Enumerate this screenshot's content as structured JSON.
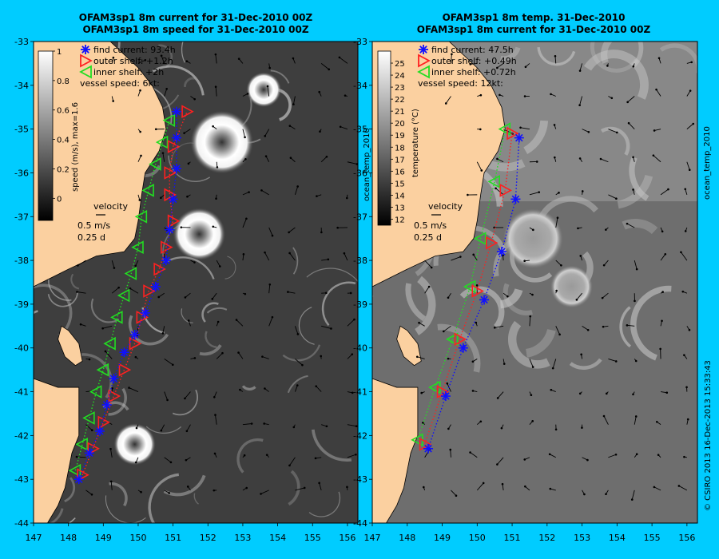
{
  "background_color": "#00ccff",
  "land_color": "#fbd0a0",
  "marker_colors": {
    "find": "#1010ff",
    "outer": "#ff2020",
    "inner": "#22dd22"
  },
  "panels": [
    {
      "id": "left",
      "title_line1": "OFAM3sp1 8m current for 31-Dec-2010 00Z",
      "title_line2": "OFAM3sp1 8m speed for 31-Dec-2010 00Z",
      "colorbar": {
        "label": "speed (m/s), max=1.6",
        "tick_labels": [
          "1",
          "0.8",
          "0.6",
          "0.4",
          "0.2",
          "0"
        ],
        "range": [
          -0.15,
          1.0
        ],
        "colormap": "grayscale"
      },
      "legend": [
        {
          "symbol": "asterisk",
          "color": "find",
          "text": "find current: 93.4h"
        },
        {
          "symbol": "triangle-right",
          "color": "outer",
          "text": "outer shelf: +1.2h"
        },
        {
          "symbol": "triangle-left",
          "color": "inner",
          "text": "inner shelf: +2h"
        },
        {
          "symbol": "none",
          "color": "",
          "text": "vessel speed: 6kt:"
        }
      ],
      "velocity_key": {
        "title": "velocity",
        "speed": "0.5 m/s",
        "time": "0.25 d"
      },
      "side_label": "",
      "eddies": [
        {
          "lon": 152.4,
          "lat": -35.3,
          "radius_deg": 0.9
        },
        {
          "lon": 151.75,
          "lat": -37.4,
          "radius_deg": 0.75
        },
        {
          "lon": 153.6,
          "lat": -34.1,
          "radius_deg": 0.5
        },
        {
          "lon": 149.9,
          "lat": -42.2,
          "radius_deg": 0.6
        }
      ],
      "tracks": {
        "find": [
          [
            148.3,
            -43.0
          ],
          [
            148.6,
            -42.4
          ],
          [
            148.9,
            -41.9
          ],
          [
            149.1,
            -41.3
          ],
          [
            149.3,
            -40.7
          ],
          [
            149.6,
            -40.1
          ],
          [
            149.9,
            -39.7
          ],
          [
            150.2,
            -39.2
          ],
          [
            150.5,
            -38.6
          ],
          [
            150.8,
            -38.0
          ],
          [
            150.9,
            -37.3
          ],
          [
            151.0,
            -36.6
          ],
          [
            151.1,
            -35.9
          ],
          [
            151.1,
            -35.2
          ],
          [
            151.1,
            -34.6
          ]
        ],
        "outer": [
          [
            148.4,
            -42.9
          ],
          [
            148.7,
            -42.3
          ],
          [
            149.0,
            -41.7
          ],
          [
            149.3,
            -41.1
          ],
          [
            149.6,
            -40.5
          ],
          [
            149.9,
            -39.9
          ],
          [
            150.1,
            -39.3
          ],
          [
            150.3,
            -38.7
          ],
          [
            150.6,
            -38.2
          ],
          [
            150.8,
            -37.7
          ],
          [
            151.0,
            -37.1
          ],
          [
            150.9,
            -36.5
          ],
          [
            150.9,
            -36.0
          ],
          [
            151.0,
            -35.4
          ],
          [
            151.4,
            -34.6
          ]
        ],
        "inner": [
          [
            148.2,
            -42.8
          ],
          [
            148.4,
            -42.2
          ],
          [
            148.6,
            -41.6
          ],
          [
            148.8,
            -41.0
          ],
          [
            149.0,
            -40.5
          ],
          [
            149.2,
            -39.9
          ],
          [
            149.4,
            -39.3
          ],
          [
            149.6,
            -38.8
          ],
          [
            149.8,
            -38.3
          ],
          [
            150.0,
            -37.7
          ],
          [
            150.1,
            -37.0
          ],
          [
            150.3,
            -36.4
          ],
          [
            150.5,
            -35.8
          ],
          [
            150.7,
            -35.3
          ],
          [
            150.9,
            -34.8
          ]
        ]
      }
    },
    {
      "id": "right",
      "title_line1": "OFAM3sp1 8m temp. 31-Dec-2010",
      "title_line2": "OFAM3sp1 8m current for 31-Dec-2010 00Z",
      "colorbar": {
        "label": "temperature (°C)",
        "left_label": "ocean_temp_2010",
        "tick_labels": [
          "25",
          "24",
          "23",
          "22",
          "21",
          "20",
          "19",
          "18",
          "17",
          "16",
          "15",
          "14",
          "13",
          "12"
        ],
        "range": [
          11.5,
          26.0
        ],
        "colormap": "grayscale"
      },
      "legend": [
        {
          "symbol": "asterisk",
          "color": "find",
          "text": "find current: 47.5h"
        },
        {
          "symbol": "triangle-right",
          "color": "outer",
          "text": "outer shelf: +0.49h"
        },
        {
          "symbol": "triangle-left",
          "color": "inner",
          "text": "inner shelf: +0.72h"
        },
        {
          "symbol": "none",
          "color": "",
          "text": "vessel speed: 12kt:"
        }
      ],
      "velocity_key": {
        "title": "velocity",
        "speed": "0.5 m/s",
        "time": "0.25 d"
      },
      "side_label": "ocean_temp_2010",
      "eddies": [
        {
          "lon": 151.6,
          "lat": -37.5,
          "radius_deg": 0.85
        },
        {
          "lon": 152.7,
          "lat": -38.6,
          "radius_deg": 0.6
        }
      ],
      "tracks": {
        "find": [
          [
            148.6,
            -42.3
          ],
          [
            149.1,
            -41.1
          ],
          [
            149.6,
            -40.0
          ],
          [
            150.2,
            -38.9
          ],
          [
            150.7,
            -37.8
          ],
          [
            151.1,
            -36.6
          ],
          [
            151.2,
            -35.2
          ]
        ],
        "outer": [
          [
            148.5,
            -42.2
          ],
          [
            149.0,
            -41.0
          ],
          [
            149.5,
            -39.8
          ],
          [
            150.0,
            -38.7
          ],
          [
            150.4,
            -37.6
          ],
          [
            150.8,
            -36.4
          ],
          [
            151.0,
            -35.1
          ]
        ],
        "inner": [
          [
            148.3,
            -42.1
          ],
          [
            148.8,
            -40.9
          ],
          [
            149.3,
            -39.8
          ],
          [
            149.8,
            -38.6
          ],
          [
            150.1,
            -37.5
          ],
          [
            150.5,
            -36.2
          ],
          [
            150.8,
            -35.0
          ]
        ]
      }
    }
  ],
  "axes": {
    "lat_ticks": [
      "-33",
      "-34",
      "-35",
      "-36",
      "-37",
      "-38",
      "-39",
      "-40",
      "-41",
      "-42",
      "-43",
      "-44"
    ],
    "lat_values": [
      -33,
      -34,
      -35,
      -36,
      -37,
      -38,
      -39,
      -40,
      -41,
      -42,
      -43,
      -44
    ],
    "lon_ticks": [
      "147",
      "148",
      "149",
      "150",
      "151",
      "152",
      "153",
      "154",
      "155",
      "156"
    ],
    "lon_values": [
      147,
      148,
      149,
      150,
      151,
      152,
      153,
      154,
      155,
      156
    ],
    "lon_range": [
      147.0,
      156.3
    ],
    "lat_range": [
      -44.0,
      -33.0
    ]
  },
  "credit": "© CSIRO 2013   16-Dec-2013 15:33:43",
  "coastline": [
    [
      149.2,
      -33.0
    ],
    [
      150.0,
      -33.6
    ],
    [
      150.4,
      -34.0
    ],
    [
      150.7,
      -34.5
    ],
    [
      150.8,
      -35.0
    ],
    [
      150.6,
      -35.5
    ],
    [
      150.2,
      -36.0
    ],
    [
      150.1,
      -36.5
    ],
    [
      150.0,
      -37.1
    ],
    [
      149.9,
      -37.5
    ],
    [
      149.6,
      -37.8
    ],
    [
      148.8,
      -37.9
    ],
    [
      148.0,
      -38.2
    ],
    [
      147.5,
      -38.4
    ],
    [
      147.0,
      -38.6
    ]
  ],
  "tasmania": [
    [
      147.0,
      -40.7
    ],
    [
      147.7,
      -40.9
    ],
    [
      148.3,
      -40.9
    ],
    [
      148.3,
      -41.5
    ],
    [
      148.3,
      -42.0
    ],
    [
      148.1,
      -42.4
    ],
    [
      148.0,
      -42.8
    ],
    [
      147.9,
      -43.2
    ],
    [
      147.7,
      -43.6
    ],
    [
      147.4,
      -44.0
    ],
    [
      147.0,
      -44.0
    ]
  ],
  "islands": [
    [
      [
        147.8,
        -39.5
      ],
      [
        148.0,
        -39.6
      ],
      [
        148.3,
        -39.9
      ],
      [
        148.4,
        -40.3
      ],
      [
        148.2,
        -40.4
      ],
      [
        147.9,
        -40.2
      ],
      [
        147.7,
        -39.8
      ]
    ]
  ]
}
